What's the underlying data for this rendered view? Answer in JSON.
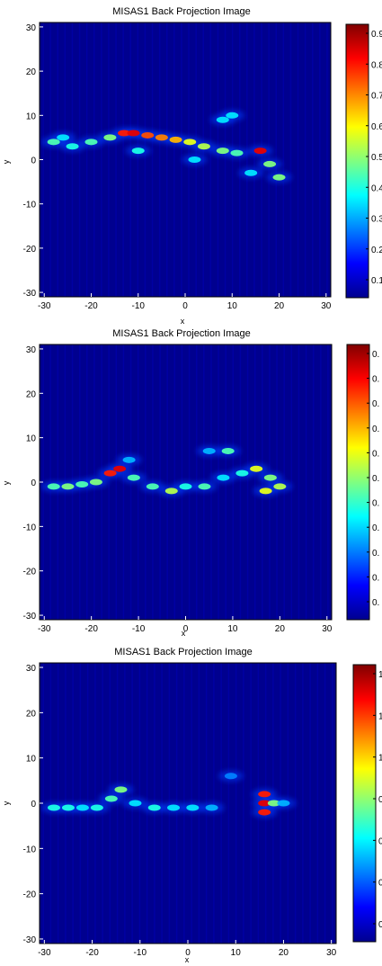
{
  "colormap": [
    "#00008f",
    "#0000ff",
    "#0080ff",
    "#00ffff",
    "#80ff80",
    "#ffff00",
    "#ff8000",
    "#ff0000",
    "#800000"
  ],
  "chart_data": [
    {
      "type": "heatmap",
      "title": "MISAS1 Back Projection Image",
      "xlabel": "x",
      "ylabel": "y",
      "xlim": [
        -31,
        31
      ],
      "ylim": [
        -31,
        31
      ],
      "xticks": [
        "-30",
        "-20",
        "-10",
        "0",
        "10",
        "20",
        "30"
      ],
      "yticks": [
        "30",
        "20",
        "10",
        "0",
        "-10",
        "-20",
        "-30"
      ],
      "colorbar_ticks": [
        "0.9",
        "0.8",
        "0.7",
        "0.6",
        "0.5",
        "0.4",
        "0.3",
        "0.2",
        "0.1"
      ],
      "grid": false,
      "features": [
        {
          "x": -28,
          "y": 4,
          "v": 0.45
        },
        {
          "x": -24,
          "y": 3,
          "v": 0.4
        },
        {
          "x": -20,
          "y": 4,
          "v": 0.45
        },
        {
          "x": -16,
          "y": 5,
          "v": 0.5
        },
        {
          "x": -13,
          "y": 6,
          "v": 0.85
        },
        {
          "x": -11,
          "y": 6,
          "v": 0.9
        },
        {
          "x": -8,
          "y": 5.5,
          "v": 0.8
        },
        {
          "x": -5,
          "y": 5,
          "v": 0.75
        },
        {
          "x": -2,
          "y": 4.5,
          "v": 0.7
        },
        {
          "x": 1,
          "y": 4,
          "v": 0.6
        },
        {
          "x": 4,
          "y": 3,
          "v": 0.55
        },
        {
          "x": 8,
          "y": 2,
          "v": 0.5
        },
        {
          "x": 11,
          "y": 1.5,
          "v": 0.45
        },
        {
          "x": 16,
          "y": 2,
          "v": 0.9
        },
        {
          "x": 18,
          "y": -1,
          "v": 0.5
        },
        {
          "x": 20,
          "y": -4,
          "v": 0.5
        },
        {
          "x": 8,
          "y": 9,
          "v": 0.35
        },
        {
          "x": 10,
          "y": 10,
          "v": 0.35
        },
        {
          "x": -26,
          "y": 5,
          "v": 0.35
        },
        {
          "x": -10,
          "y": 2,
          "v": 0.4
        },
        {
          "x": 2,
          "y": 0,
          "v": 0.35
        },
        {
          "x": 14,
          "y": -3,
          "v": 0.35
        }
      ]
    },
    {
      "type": "heatmap",
      "title": "MISAS1 Back Projection Image",
      "xlabel": "x",
      "ylabel": "y",
      "xlim": [
        -31,
        31
      ],
      "ylim": [
        -31,
        31
      ],
      "xticks": [
        "-30",
        "-20",
        "-10",
        "0",
        "10",
        "20",
        "30"
      ],
      "yticks": [
        "30",
        "20",
        "10",
        "0",
        "-10",
        "-20",
        "-30"
      ],
      "colorbar_ticks": [
        "0.",
        "0.",
        "0.",
        "0.",
        "0.",
        "0.",
        "0.",
        "0.",
        "0.",
        "0.",
        "0."
      ],
      "grid": false,
      "features": [
        {
          "x": -28,
          "y": -1,
          "v": 0.45
        },
        {
          "x": -25,
          "y": -1,
          "v": 0.5
        },
        {
          "x": -22,
          "y": -0.5,
          "v": 0.45
        },
        {
          "x": -19,
          "y": 0,
          "v": 0.5
        },
        {
          "x": -16,
          "y": 2,
          "v": 0.85
        },
        {
          "x": -14,
          "y": 3,
          "v": 0.9
        },
        {
          "x": -11,
          "y": 1,
          "v": 0.45
        },
        {
          "x": -7,
          "y": -1,
          "v": 0.45
        },
        {
          "x": -3,
          "y": -2,
          "v": 0.55
        },
        {
          "x": 0,
          "y": -1,
          "v": 0.4
        },
        {
          "x": 4,
          "y": -1,
          "v": 0.45
        },
        {
          "x": 8,
          "y": 1,
          "v": 0.35
        },
        {
          "x": 12,
          "y": 2,
          "v": 0.4
        },
        {
          "x": 15,
          "y": 3,
          "v": 0.6
        },
        {
          "x": 18,
          "y": 1,
          "v": 0.5
        },
        {
          "x": 17,
          "y": -2,
          "v": 0.6
        },
        {
          "x": 20,
          "y": -1,
          "v": 0.55
        },
        {
          "x": 9,
          "y": 7,
          "v": 0.45
        },
        {
          "x": 5,
          "y": 7,
          "v": 0.3
        },
        {
          "x": -12,
          "y": 5,
          "v": 0.3
        }
      ]
    },
    {
      "type": "heatmap",
      "title": "MISAS1 Back Projection Image",
      "xlabel": "x",
      "ylabel": "y",
      "xlim": [
        -31,
        31
      ],
      "ylim": [
        -31,
        31
      ],
      "xticks": [
        "-30",
        "-20",
        "-10",
        "0",
        "10",
        "20",
        "30"
      ],
      "yticks": [
        "30",
        "20",
        "10",
        "0",
        "-10",
        "-20",
        "-30"
      ],
      "colorbar_ticks": [
        "1",
        "1",
        "1",
        "0",
        "0",
        "0",
        "0"
      ],
      "grid": false,
      "features": [
        {
          "x": -28,
          "y": -1,
          "v": 0.4
        },
        {
          "x": -25,
          "y": -1,
          "v": 0.4
        },
        {
          "x": -22,
          "y": -1,
          "v": 0.35
        },
        {
          "x": -19,
          "y": -1,
          "v": 0.4
        },
        {
          "x": -16,
          "y": 1,
          "v": 0.45
        },
        {
          "x": -14,
          "y": 3,
          "v": 0.5
        },
        {
          "x": -11,
          "y": 0,
          "v": 0.35
        },
        {
          "x": -7,
          "y": -1,
          "v": 0.4
        },
        {
          "x": -3,
          "y": -1,
          "v": 0.35
        },
        {
          "x": 1,
          "y": -1,
          "v": 0.35
        },
        {
          "x": 5,
          "y": -1,
          "v": 0.3
        },
        {
          "x": 9,
          "y": 6,
          "v": 0.25
        },
        {
          "x": 16,
          "y": 2,
          "v": 0.85
        },
        {
          "x": 16,
          "y": 0,
          "v": 0.9
        },
        {
          "x": 16,
          "y": -2,
          "v": 0.85
        },
        {
          "x": 18,
          "y": 0,
          "v": 0.5
        },
        {
          "x": 20,
          "y": 0,
          "v": 0.3
        }
      ]
    }
  ]
}
